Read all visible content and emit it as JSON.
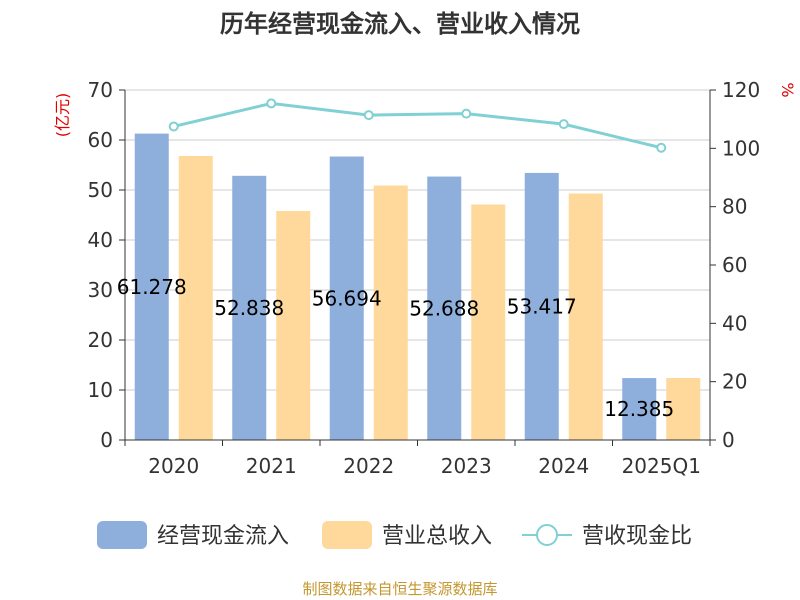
{
  "chart_data": {
    "type": "bar",
    "title": "历年经营现金流入、营业收入情况",
    "categories": [
      "2020",
      "2021",
      "2022",
      "2023",
      "2024",
      "2025Q1"
    ],
    "series": [
      {
        "name": "经营现金流入",
        "type": "bar",
        "axis": "left",
        "color": "#8eaedb",
        "values": [
          61.278,
          52.838,
          56.694,
          52.688,
          53.417,
          12.385
        ],
        "labels": [
          "61.278",
          "52.838",
          "56.694",
          "52.688",
          "53.417",
          "12.385"
        ]
      },
      {
        "name": "营业总收入",
        "type": "bar",
        "axis": "left",
        "color": "#ffd99b",
        "values": [
          56.8,
          45.8,
          50.9,
          47.1,
          49.3,
          12.4
        ]
      },
      {
        "name": "营收现金比",
        "type": "line",
        "axis": "right",
        "color": "#80d0d4",
        "values": [
          107.5,
          115.4,
          111.4,
          111.9,
          108.3,
          100.2
        ]
      }
    ],
    "left_axis": {
      "unit": "(亿元)",
      "min": 0,
      "max": 70,
      "ticks": [
        0,
        10,
        20,
        30,
        40,
        50,
        60,
        70
      ]
    },
    "right_axis": {
      "unit": "%",
      "min": 0,
      "max": 120,
      "ticks": [
        0,
        20,
        40,
        60,
        80,
        100,
        120
      ]
    },
    "grid": true,
    "legend_position": "bottom"
  },
  "source": "制图数据来自恒生聚源数据库"
}
